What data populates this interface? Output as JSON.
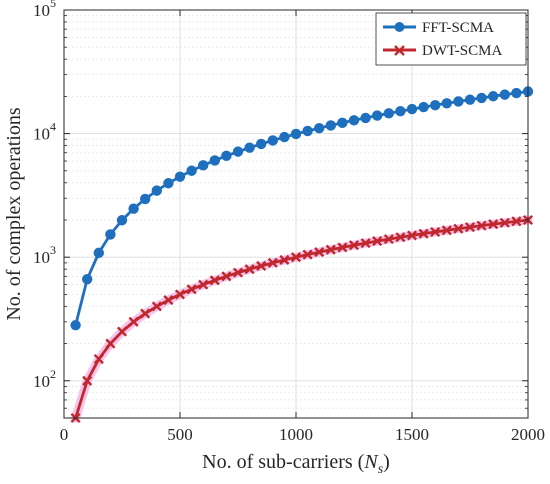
{
  "chart_data": {
    "type": "line",
    "title": "",
    "xlabel": "No.  of sub-carriers (",
    "xlabel_var": "N",
    "xlabel_sub": "s",
    "xlabel_close": ")",
    "ylabel": "No. of complex operations",
    "xlim": [
      0,
      2000
    ],
    "ylim": [
      50,
      100000
    ],
    "yscale": "log",
    "grid": true,
    "legend_position": "top-right",
    "x_ticks": [
      0,
      500,
      1000,
      1500,
      2000
    ],
    "x_tick_labels": [
      "0",
      "500",
      "1000",
      "1500",
      "2000"
    ],
    "y_ticks": [
      100,
      1000,
      10000,
      100000
    ],
    "y_tick_labels": [
      {
        "base": "10",
        "exp": "2"
      },
      {
        "base": "10",
        "exp": "3"
      },
      {
        "base": "10",
        "exp": "4"
      },
      {
        "base": "10",
        "exp": "5"
      }
    ],
    "x": [
      50,
      100,
      150,
      200,
      250,
      300,
      350,
      400,
      450,
      500,
      550,
      600,
      650,
      700,
      750,
      800,
      850,
      900,
      950,
      1000,
      1050,
      1100,
      1150,
      1200,
      1250,
      1300,
      1350,
      1400,
      1450,
      1500,
      1550,
      1600,
      1650,
      1700,
      1750,
      1800,
      1850,
      1900,
      1950,
      2000
    ],
    "series": [
      {
        "name": "FFT-SCMA",
        "color": "#1f6fbf",
        "marker": "circle",
        "values": [
          282,
          664,
          1084,
          1529,
          1990,
          2469,
          2958,
          3457,
          3965,
          4483,
          5006,
          5534,
          6066,
          6605,
          7147,
          7695,
          8249,
          8805,
          9367,
          9932,
          10500,
          11070,
          11650,
          12230,
          12810,
          13400,
          13990,
          14580,
          15180,
          15780,
          16380,
          16980,
          17590,
          18200,
          18810,
          19430,
          20050,
          20670,
          21290,
          21910
        ]
      },
      {
        "name": "DWT-SCMA",
        "color": "#c0282d",
        "marker": "x",
        "values": [
          50,
          100,
          150,
          200,
          250,
          300,
          350,
          400,
          450,
          500,
          550,
          600,
          650,
          700,
          750,
          800,
          850,
          900,
          950,
          1000,
          1050,
          1100,
          1150,
          1200,
          1250,
          1300,
          1350,
          1400,
          1450,
          1500,
          1550,
          1600,
          1650,
          1700,
          1750,
          1800,
          1850,
          1900,
          1950,
          2000
        ]
      }
    ]
  }
}
